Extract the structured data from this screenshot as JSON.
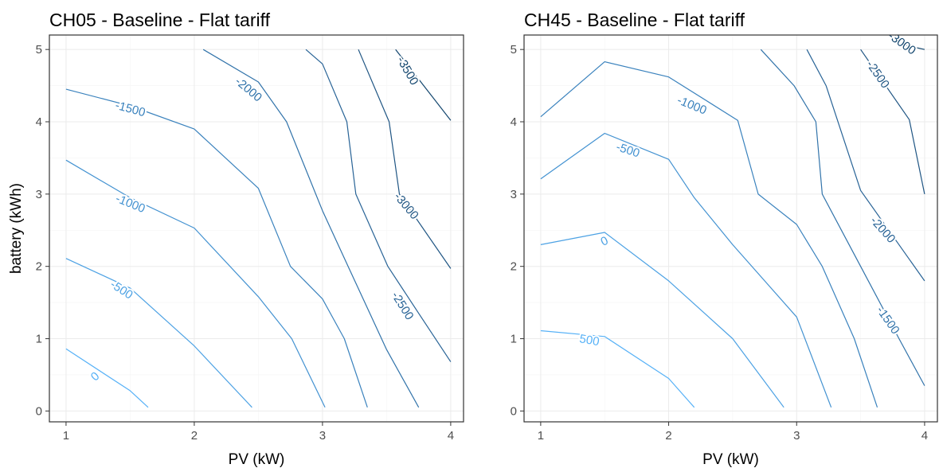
{
  "chart_data": [
    {
      "type": "contour",
      "title": "CH05 - Baseline - Flat tariff",
      "xlabel": "PV (kW)",
      "ylabel": "battery (kWh)",
      "xlim": [
        0.87,
        4.1
      ],
      "ylim": [
        -0.15,
        5.2
      ],
      "xticks": [
        1,
        2,
        3,
        4
      ],
      "yticks": [
        0,
        1,
        2,
        3,
        4,
        5
      ],
      "grid": true,
      "contours": [
        {
          "level": "0",
          "color": "#56B1F7",
          "points": [
            [
              1.0,
              0.86
            ],
            [
              1.5,
              0.28
            ],
            [
              1.64,
              0.05
            ]
          ],
          "label": {
            "x": 1.23,
            "y": 0.47,
            "angle": -42
          }
        },
        {
          "level": "-500",
          "color": "#4DA2E4",
          "points": [
            [
              1.0,
              2.11
            ],
            [
              1.5,
              1.7
            ],
            [
              2.0,
              0.9
            ],
            [
              2.45,
              0.05
            ]
          ],
          "label": {
            "x": 1.43,
            "y": 1.67,
            "angle": 33
          }
        },
        {
          "level": "-1000",
          "color": "#4392D1",
          "points": [
            [
              1.0,
              3.47
            ],
            [
              1.5,
              2.95
            ],
            [
              2.0,
              2.53
            ],
            [
              2.5,
              1.58
            ],
            [
              2.76,
              1.0
            ],
            [
              3.02,
              0.05
            ]
          ],
          "label": {
            "x": 1.5,
            "y": 2.86,
            "angle": 22
          }
        },
        {
          "level": "-1500",
          "color": "#3A82BD",
          "points": [
            [
              1.0,
              4.45
            ],
            [
              1.5,
              4.22
            ],
            [
              2.0,
              3.9
            ],
            [
              2.5,
              3.08
            ],
            [
              2.75,
              2.0
            ],
            [
              3.0,
              1.55
            ],
            [
              3.17,
              1.0
            ],
            [
              3.35,
              0.05
            ]
          ],
          "label": {
            "x": 1.5,
            "y": 4.17,
            "angle": 15
          }
        },
        {
          "level": "-2000",
          "color": "#3173AA",
          "points": [
            [
              2.07,
              5.0
            ],
            [
              2.5,
              4.55
            ],
            [
              2.72,
              4.0
            ],
            [
              3.0,
              2.77
            ],
            [
              3.2,
              2.0
            ],
            [
              3.5,
              0.85
            ],
            [
              3.75,
              0.05
            ]
          ],
          "label": {
            "x": 2.42,
            "y": 4.44,
            "angle": 40
          }
        },
        {
          "level": "-2500",
          "color": "#286396",
          "points": [
            [
              2.87,
              5.0
            ],
            [
              3.0,
              4.8
            ],
            [
              3.19,
              4.0
            ],
            [
              3.26,
              3.0
            ],
            [
              3.51,
              2.0
            ],
            [
              3.75,
              1.35
            ],
            [
              4.0,
              0.68
            ]
          ],
          "label": {
            "x": 3.62,
            "y": 1.45,
            "angle": 58
          }
        },
        {
          "level": "-3000",
          "color": "#1F5583",
          "points": [
            [
              3.28,
              5.0
            ],
            [
              3.52,
              4.0
            ],
            [
              3.6,
              3.0
            ],
            [
              4.0,
              1.97
            ]
          ],
          "label": {
            "x": 3.65,
            "y": 2.83,
            "angle": 50
          }
        },
        {
          "level": "-3500",
          "color": "#13466E",
          "points": [
            [
              3.57,
              5.0
            ],
            [
              4.0,
              4.02
            ]
          ],
          "label": {
            "x": 3.66,
            "y": 4.7,
            "angle": 60
          }
        }
      ]
    },
    {
      "type": "contour",
      "title": "CH45 - Baseline - Flat tariff",
      "xlabel": "PV (kW)",
      "ylabel": "",
      "xlim": [
        0.87,
        4.1
      ],
      "ylim": [
        -0.15,
        5.2
      ],
      "xticks": [
        1,
        2,
        3,
        4
      ],
      "yticks": [
        0,
        1,
        2,
        3,
        4,
        5
      ],
      "grid": true,
      "contours": [
        {
          "level": "500",
          "color": "#56B1F7",
          "points": [
            [
              1.0,
              1.11
            ],
            [
              1.5,
              1.03
            ],
            [
              2.0,
              0.45
            ],
            [
              2.2,
              0.05
            ]
          ],
          "label": {
            "x": 1.38,
            "y": 0.97,
            "angle": 10
          }
        },
        {
          "level": "0",
          "color": "#4DA2E4",
          "points": [
            [
              1.0,
              2.3
            ],
            [
              1.5,
              2.47
            ],
            [
              2.0,
              1.8
            ],
            [
              2.5,
              1.0
            ],
            [
              2.9,
              0.05
            ]
          ],
          "label": {
            "x": 1.5,
            "y": 2.34,
            "angle": -25
          }
        },
        {
          "level": "-500",
          "color": "#4392D1",
          "points": [
            [
              1.0,
              3.21
            ],
            [
              1.5,
              3.84
            ],
            [
              2.0,
              3.48
            ],
            [
              2.2,
              2.95
            ],
            [
              2.5,
              2.3
            ],
            [
              3.0,
              1.3
            ],
            [
              3.27,
              0.05
            ]
          ],
          "label": {
            "x": 1.68,
            "y": 3.6,
            "angle": 18
          }
        },
        {
          "level": "-1000",
          "color": "#3A82BD",
          "points": [
            [
              1.0,
              4.07
            ],
            [
              1.5,
              4.83
            ],
            [
              2.0,
              4.62
            ],
            [
              2.54,
              4.02
            ],
            [
              2.7,
              3.0
            ],
            [
              3.0,
              2.58
            ],
            [
              3.2,
              2.0
            ],
            [
              3.45,
              1.0
            ],
            [
              3.63,
              0.05
            ]
          ],
          "label": {
            "x": 2.18,
            "y": 4.22,
            "angle": 22
          }
        },
        {
          "level": "-1500",
          "color": "#3173AA",
          "points": [
            [
              2.72,
              5.0
            ],
            [
              2.98,
              4.5
            ],
            [
              3.15,
              4.0
            ],
            [
              3.2,
              3.0
            ],
            [
              3.5,
              2.0
            ],
            [
              3.8,
              1.0
            ],
            [
              4.0,
              0.35
            ]
          ],
          "label": {
            "x": 3.71,
            "y": 1.25,
            "angle": 55
          }
        },
        {
          "level": "-2000",
          "color": "#286396",
          "points": [
            [
              3.08,
              5.0
            ],
            [
              3.23,
              4.5
            ],
            [
              3.5,
              3.05
            ],
            [
              4.0,
              1.8
            ]
          ],
          "label": {
            "x": 3.67,
            "y": 2.5,
            "angle": 48
          }
        },
        {
          "level": "-2500",
          "color": "#1F5583",
          "points": [
            [
              3.5,
              5.0
            ],
            [
              3.88,
              4.03
            ],
            [
              4.0,
              3.0
            ]
          ],
          "label": {
            "x": 3.63,
            "y": 4.65,
            "angle": 55
          }
        },
        {
          "level": "-3000",
          "color": "#13466E",
          "points": [
            [
              3.75,
              5.1
            ],
            [
              4.0,
              5.0
            ]
          ],
          "label": {
            "x": 3.82,
            "y": 5.08,
            "angle": 35
          }
        }
      ]
    }
  ]
}
